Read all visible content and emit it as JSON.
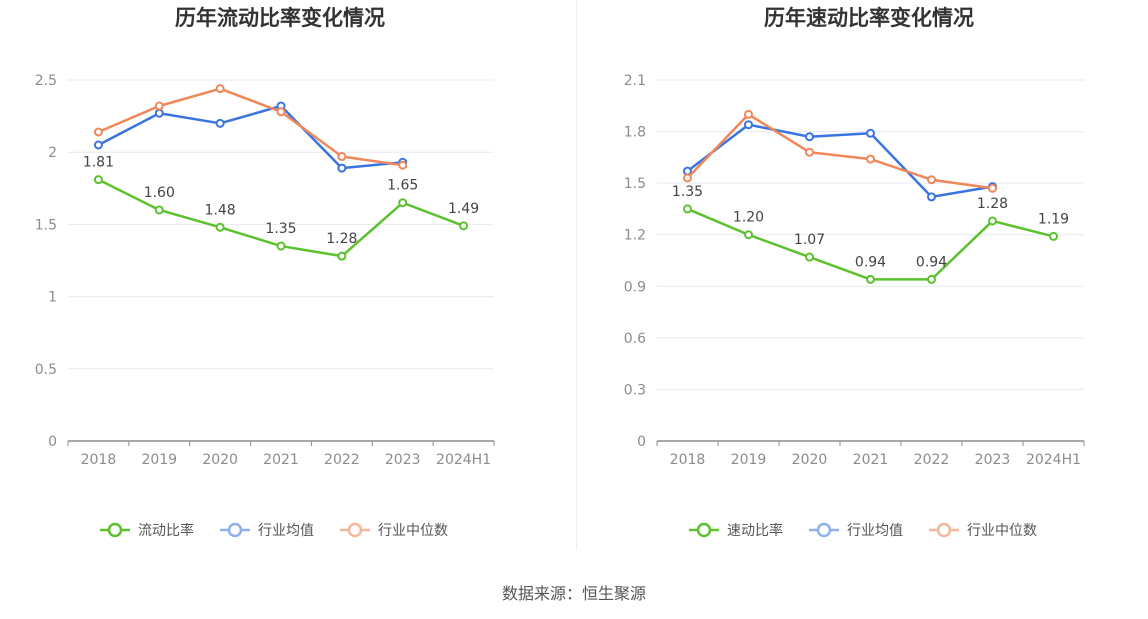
{
  "source_label": "数据来源：恒生聚源",
  "chart_data": [
    {
      "type": "line",
      "title": "历年流动比率变化情况",
      "categories": [
        "2018",
        "2019",
        "2020",
        "2021",
        "2022",
        "2023",
        "2024H1"
      ],
      "ylim": [
        0,
        2.5
      ],
      "yticks": [
        0,
        0.5,
        1,
        1.5,
        2,
        2.5
      ],
      "ytick_labels": [
        "0",
        "0.5",
        "1",
        "1.5",
        "2",
        "2.5"
      ],
      "grid": true,
      "legend_position": "bottom",
      "series": [
        {
          "name": "流动比率",
          "color": "#5cc12f",
          "values": [
            1.81,
            1.6,
            1.48,
            1.35,
            1.28,
            1.65,
            1.49
          ],
          "labels": [
            "1.81",
            "1.60",
            "1.48",
            "1.35",
            "1.28",
            "1.65",
            "1.49"
          ],
          "legend_color": "#5cc12f"
        },
        {
          "name": "行业均值",
          "color": "#3a74e0",
          "values": [
            2.05,
            2.27,
            2.2,
            2.32,
            1.89,
            1.93,
            null
          ],
          "legend_color": "#8fb0ec"
        },
        {
          "name": "行业中位数",
          "color": "#f0875a",
          "values": [
            2.14,
            2.32,
            2.44,
            2.28,
            1.97,
            1.91,
            null
          ],
          "legend_color": "#f5b79b"
        }
      ]
    },
    {
      "type": "line",
      "title": "历年速动比率变化情况",
      "categories": [
        "2018",
        "2019",
        "2020",
        "2021",
        "2022",
        "2023",
        "2024H1"
      ],
      "ylim": [
        0,
        2.1
      ],
      "yticks": [
        0,
        0.3,
        0.6,
        0.9,
        1.2,
        1.5,
        1.8,
        2.1
      ],
      "ytick_labels": [
        "0",
        "0.3",
        "0.6",
        "0.9",
        "1.2",
        "1.5",
        "1.8",
        "2.1"
      ],
      "grid": true,
      "legend_position": "bottom",
      "series": [
        {
          "name": "速动比率",
          "color": "#5cc12f",
          "values": [
            1.35,
            1.2,
            1.07,
            0.94,
            0.94,
            1.28,
            1.19
          ],
          "labels": [
            "1.35",
            "1.20",
            "1.07",
            "0.94",
            "0.94",
            "1.28",
            "1.19"
          ],
          "legend_color": "#5cc12f"
        },
        {
          "name": "行业均值",
          "color": "#3a74e0",
          "values": [
            1.57,
            1.84,
            1.77,
            1.79,
            1.42,
            1.48,
            null
          ],
          "legend_color": "#8fb0ec"
        },
        {
          "name": "行业中位数",
          "color": "#f0875a",
          "values": [
            1.53,
            1.9,
            1.68,
            1.64,
            1.52,
            1.47,
            null
          ],
          "legend_color": "#f5b79b"
        }
      ]
    }
  ]
}
